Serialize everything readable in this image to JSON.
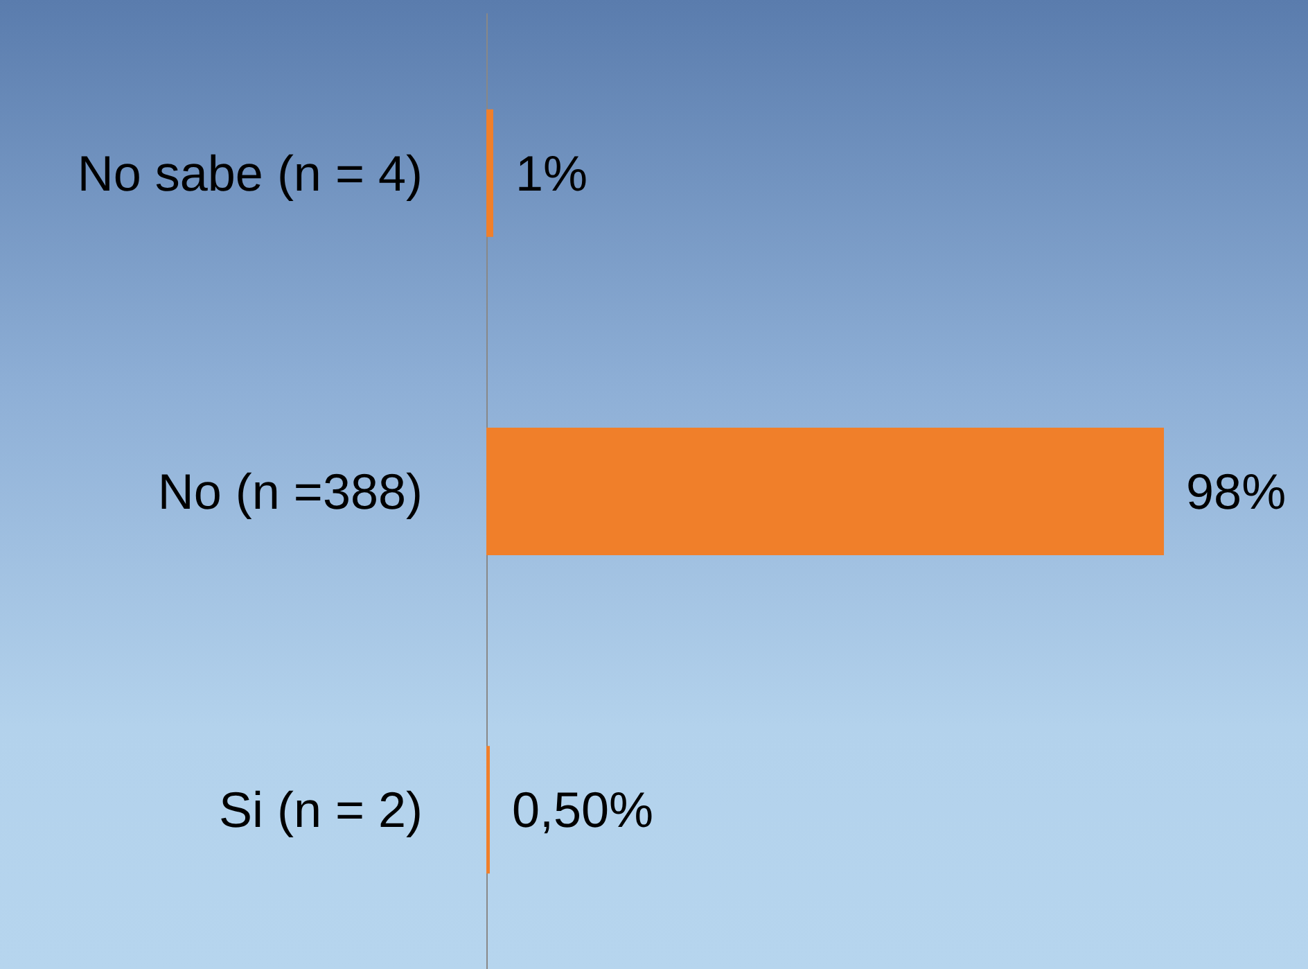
{
  "chart_data": {
    "type": "bar",
    "orientation": "horizontal",
    "categories": [
      "No sabe (n = 4)",
      "No (n =388)",
      "Si (n = 2)"
    ],
    "values": [
      1,
      98,
      0.5
    ],
    "value_labels": [
      "1%",
      "98%",
      "0,50%"
    ],
    "color": "#f07f2a"
  }
}
